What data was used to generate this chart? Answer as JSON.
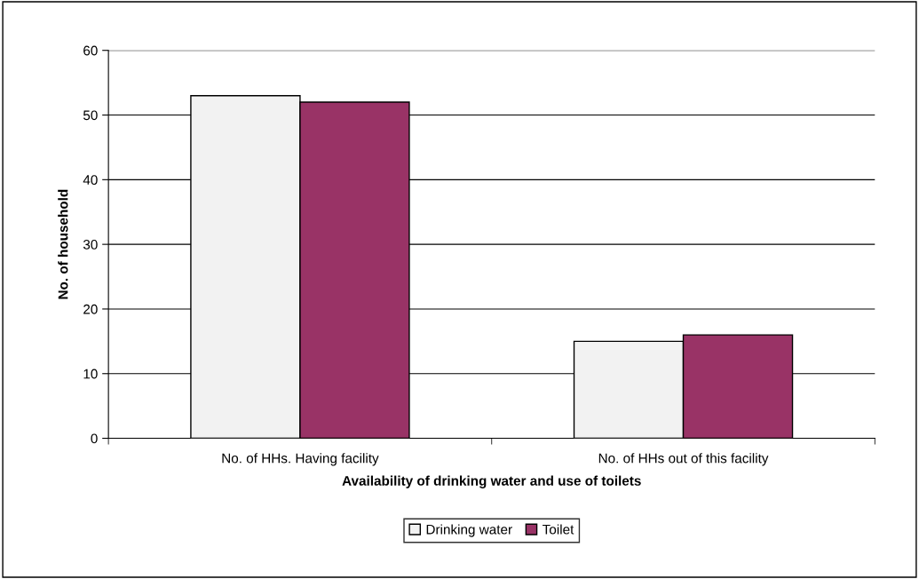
{
  "chart_data": {
    "type": "bar",
    "xlabel": "Availability of drinking water and use of toilets",
    "ylabel": "No. of household",
    "categories": [
      "No. of HHs. Having facility",
      "No. of HHs out of this facility"
    ],
    "series": [
      {
        "name": "Drinking water",
        "color": "#f2f2f2",
        "values": [
          53,
          15
        ]
      },
      {
        "name": "Toilet",
        "color": "#993366",
        "values": [
          52,
          16
        ]
      }
    ],
    "ylim": [
      0,
      60
    ],
    "yticks": [
      0,
      10,
      20,
      30,
      40,
      50,
      60
    ],
    "grid": "y",
    "legend": "bottom"
  }
}
